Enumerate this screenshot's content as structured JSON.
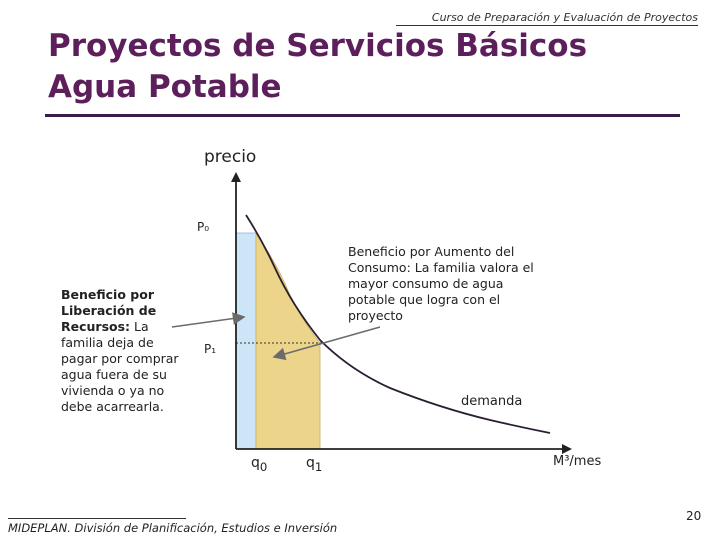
{
  "header": {
    "course": "Curso de Preparación y Evaluación de Proyectos",
    "title_line1": "Proyectos de Servicios Básicos",
    "title_line2": "Agua Potable"
  },
  "diagram": {
    "y_axis_label": "precio",
    "p0_label": "P₀",
    "p1_label": "P₁",
    "q0_label": "q",
    "q0_sub": "0",
    "q1_label": "q",
    "q1_sub": "1",
    "x_axis_label": "M³/mes",
    "curve_label": "demanda",
    "left_note_bold": "Beneficio por Liberación de Recursos:",
    "left_note_text": " La familia deja de pagar por comprar agua fuera de su vivienda o ya no debe acarrearla.",
    "right_note_bold": "Beneficio por Aumento del Consumo",
    "right_note_text": ": La familia valora el mayor consumo de agua potable que logra con el proyecto",
    "colors": {
      "savings_area": "#cce6f7",
      "consumption_area": "#ecd58a",
      "curve": "#2b1e33",
      "axis": "#222222"
    }
  },
  "footer": {
    "source": "MIDEPLAN. División de Planificación, Estudios e Inversión",
    "page_number": "20"
  }
}
